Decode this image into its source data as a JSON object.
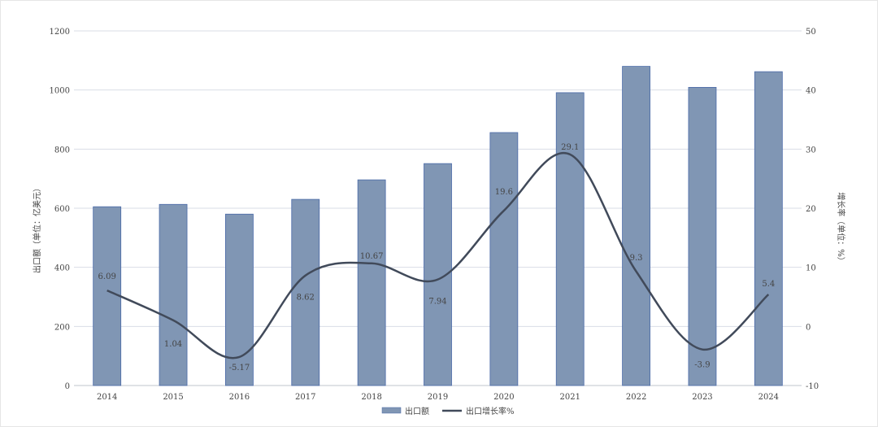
{
  "chart_data": {
    "type": "bar+line",
    "categories": [
      "2014",
      "2015",
      "2016",
      "2017",
      "2018",
      "2019",
      "2020",
      "2021",
      "2022",
      "2023",
      "2024"
    ],
    "series": [
      {
        "name": "出口额",
        "type": "bar",
        "axis": "left",
        "values": [
          605,
          613,
          580,
          630,
          696,
          751,
          856,
          991,
          1080,
          1009,
          1062
        ]
      },
      {
        "name": "出口增长率%",
        "type": "line",
        "axis": "right",
        "values": [
          6.09,
          1.04,
          -5.17,
          8.62,
          10.67,
          7.94,
          19.6,
          29.1,
          9.3,
          -3.9,
          5.4
        ],
        "labels": [
          "6.09",
          "1.04",
          "-5.17",
          "8.62",
          "10.67",
          "7.94",
          "19.6",
          "29.1",
          "9.3",
          "-3.9",
          "5.4"
        ]
      }
    ],
    "ylabel": "出口额（单位：亿美元）",
    "y2label": "增长率（单位：%）",
    "ylim": [
      0,
      1200
    ],
    "yticks": [
      "0",
      "200",
      "400",
      "600",
      "800",
      "1000",
      "1200"
    ],
    "y2lim": [
      -10,
      50
    ],
    "y2ticks": [
      "-10",
      "0",
      "10",
      "20",
      "30",
      "40",
      "50"
    ],
    "grid": true,
    "legend": "bottom",
    "colors": {
      "bar": "#8096b4",
      "bar_edge": "#4a6aa8",
      "line": "#414a5a",
      "grid": "#d9dde6"
    }
  }
}
